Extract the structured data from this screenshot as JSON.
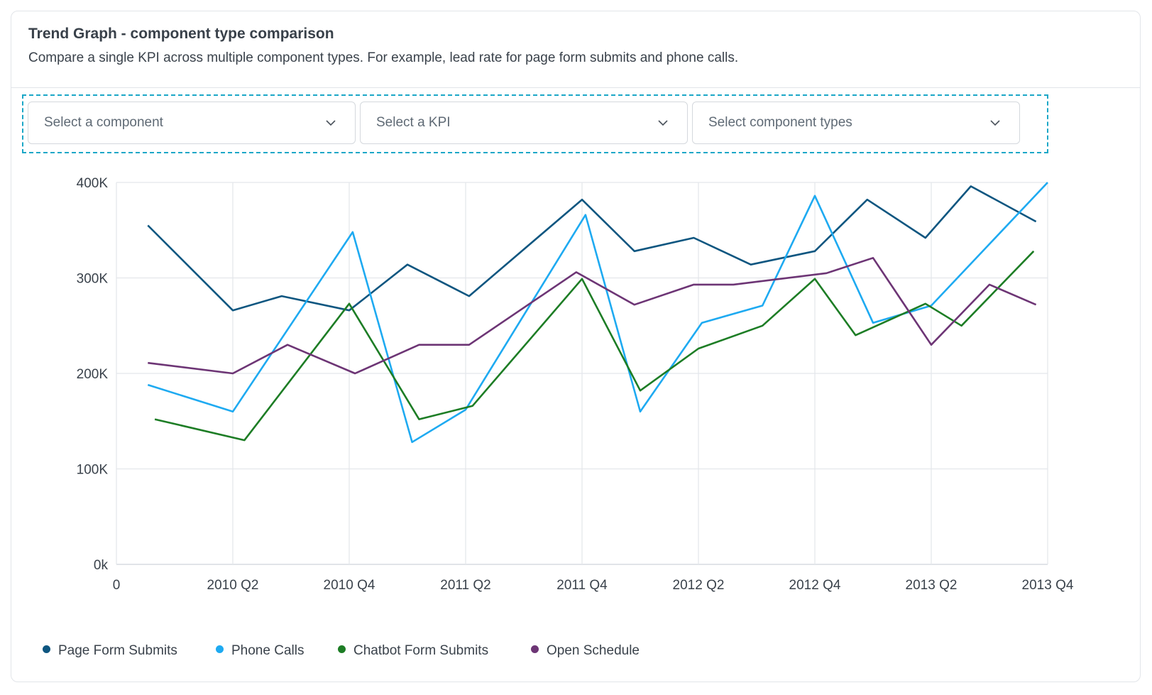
{
  "header": {
    "title": "Trend Graph - component type comparison",
    "subtitle": "Compare a single KPI across multiple component types. For example, lead rate for page form submits and phone calls."
  },
  "filters": {
    "component": {
      "placeholder": "Select a component"
    },
    "kpi": {
      "placeholder": "Select a KPI"
    },
    "types": {
      "placeholder": "Select component types"
    }
  },
  "chart_data": {
    "type": "line",
    "x_ticks": [
      "0",
      "2010 Q2",
      "2010 Q4",
      "2011 Q2",
      "2011 Q4",
      "2012 Q2",
      "2012 Q4",
      "2013 Q2",
      "2013 Q4"
    ],
    "y_ticks": [
      "0k",
      "100K",
      "200K",
      "300K",
      "400K"
    ],
    "ylim": [
      0,
      400000
    ],
    "grid": true,
    "legend_position": "bottom-left",
    "series": [
      {
        "name": "Page Form Submits",
        "color": "#0e5680",
        "points": [
          [
            0.27,
            355000
          ],
          [
            1.0,
            266000
          ],
          [
            1.42,
            281000
          ],
          [
            2.0,
            266000
          ],
          [
            2.5,
            314000
          ],
          [
            3.03,
            281000
          ],
          [
            4.0,
            382000
          ],
          [
            4.45,
            328000
          ],
          [
            4.96,
            342000
          ],
          [
            5.45,
            314000
          ],
          [
            6.0,
            328000
          ],
          [
            6.45,
            382000
          ],
          [
            6.95,
            342000
          ],
          [
            7.34,
            396000
          ],
          [
            7.9,
            359000
          ]
        ]
      },
      {
        "name": "Phone Calls",
        "color": "#1eaaf1",
        "points": [
          [
            0.27,
            188000
          ],
          [
            1.0,
            160000
          ],
          [
            2.03,
            348000
          ],
          [
            2.54,
            128000
          ],
          [
            3.0,
            162000
          ],
          [
            4.03,
            366000
          ],
          [
            4.5,
            160000
          ],
          [
            5.03,
            253000
          ],
          [
            5.55,
            271000
          ],
          [
            6.0,
            386000
          ],
          [
            6.5,
            253000
          ],
          [
            7.0,
            271000
          ],
          [
            8.0,
            400000
          ]
        ]
      },
      {
        "name": "Chatbot Form Submits",
        "color": "#1d7d25",
        "points": [
          [
            0.33,
            152000
          ],
          [
            1.1,
            130000
          ],
          [
            2.0,
            273000
          ],
          [
            2.6,
            152000
          ],
          [
            3.06,
            166000
          ],
          [
            4.0,
            299000
          ],
          [
            4.5,
            182000
          ],
          [
            5.0,
            226000
          ],
          [
            5.55,
            250000
          ],
          [
            6.0,
            299000
          ],
          [
            6.35,
            240000
          ],
          [
            6.95,
            273000
          ],
          [
            7.26,
            250000
          ],
          [
            7.88,
            328000
          ]
        ]
      },
      {
        "name": "Open Schedule",
        "color": "#6d3575",
        "points": [
          [
            0.27,
            211000
          ],
          [
            1.0,
            200000
          ],
          [
            1.47,
            230000
          ],
          [
            2.05,
            200000
          ],
          [
            2.6,
            230000
          ],
          [
            3.03,
            230000
          ],
          [
            3.95,
            306000
          ],
          [
            4.45,
            272000
          ],
          [
            4.96,
            293000
          ],
          [
            5.3,
            293000
          ],
          [
            6.1,
            305000
          ],
          [
            6.5,
            321000
          ],
          [
            7.0,
            230000
          ],
          [
            7.5,
            293000
          ],
          [
            7.9,
            272000
          ]
        ]
      }
    ]
  }
}
